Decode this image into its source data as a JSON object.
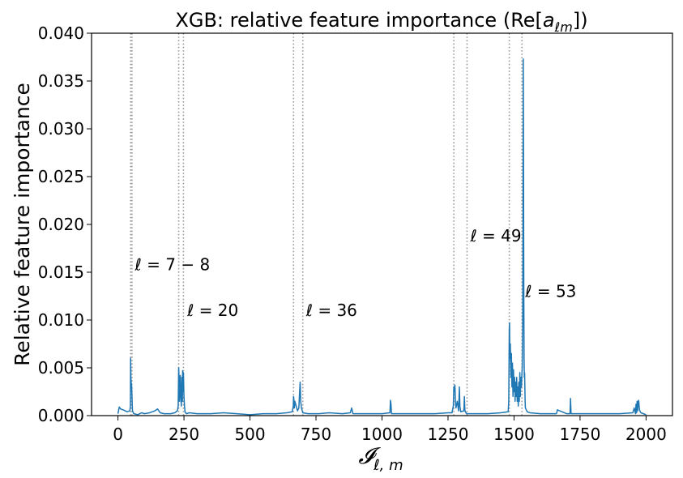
{
  "chart_data": {
    "type": "line",
    "title_parts": [
      "XGB: relative feature importance (Re[",
      "a",
      "ℓm",
      "])"
    ],
    "xlabel_parts": [
      "𝓘",
      "ℓ, m"
    ],
    "ylabel": "Relative feature importance",
    "xlim": [
      -100,
      2100
    ],
    "ylim": [
      0,
      0.04
    ],
    "xticks": [
      0,
      250,
      500,
      750,
      1000,
      1250,
      1500,
      1750,
      2000
    ],
    "yticks": [
      0.0,
      0.005,
      0.01,
      0.015,
      0.02,
      0.025,
      0.03,
      0.035,
      0.04
    ],
    "ytick_labels": [
      "0.000",
      "0.005",
      "0.010",
      "0.015",
      "0.020",
      "0.025",
      "0.030",
      "0.035",
      "0.040"
    ],
    "grid": false,
    "line_color": "#1f77b4",
    "vline_color": "#999999",
    "vlines": [
      48,
      53,
      230,
      248,
      665,
      700,
      1272,
      1322,
      1482,
      1530
    ],
    "annotations": [
      {
        "text": "ℓ = 7 − 8",
        "x": 52,
        "y": 0.0158
      },
      {
        "text": "ℓ = 20",
        "x": 250,
        "y": 0.011
      },
      {
        "text": "ℓ = 36",
        "x": 700,
        "y": 0.011
      },
      {
        "text": "ℓ = 49",
        "x": 1322,
        "y": 0.0188
      },
      {
        "text": "ℓ = 53",
        "x": 1530,
        "y": 0.013
      }
    ],
    "series": [
      {
        "x": [
          0,
          5,
          10,
          20,
          35,
          45,
          47,
          48,
          49,
          50,
          52,
          54,
          55,
          60,
          75,
          90,
          100,
          120,
          140,
          150,
          160,
          175,
          200,
          215,
          225,
          228,
          229,
          230,
          232,
          233,
          236,
          238,
          240,
          242,
          244,
          245,
          246,
          248,
          250,
          252,
          254,
          256,
          260,
          270,
          300,
          350,
          400,
          450,
          500,
          550,
          600,
          640,
          660,
          664,
          665,
          666,
          668,
          670,
          680,
          685,
          688,
          690,
          692,
          695,
          700,
          720,
          760,
          800,
          850,
          880,
          885,
          890,
          950,
          1000,
          1030,
          1032,
          1034,
          1036,
          1100,
          1150,
          1200,
          1250,
          1265,
          1270,
          1272,
          1274,
          1276,
          1278,
          1280,
          1285,
          1290,
          1293,
          1295,
          1298,
          1310,
          1312,
          1314,
          1320,
          1350,
          1400,
          1450,
          1478,
          1480,
          1482,
          1483,
          1484,
          1486,
          1488,
          1490,
          1492,
          1494,
          1496,
          1498,
          1500,
          1502,
          1504,
          1506,
          1508,
          1510,
          1512,
          1514,
          1516,
          1518,
          1520,
          1522,
          1524,
          1526,
          1528,
          1530,
          1531,
          1532,
          1533,
          1534,
          1535,
          1536,
          1537,
          1538,
          1539,
          1540,
          1541,
          1542,
          1543,
          1550,
          1560,
          1600,
          1650,
          1660,
          1662,
          1664,
          1700,
          1712,
          1714,
          1716,
          1750,
          1800,
          1850,
          1900,
          1950,
          1955,
          1960,
          1962,
          1964,
          1966,
          1968,
          1970,
          1972,
          1975,
          1980,
          1990,
          2000
        ],
        "y": [
          0.0002,
          0.0009,
          0.0007,
          0.0006,
          0.0004,
          0.0005,
          0.001,
          0.006,
          0.004,
          0.0035,
          0.003,
          0.0012,
          0.0005,
          0.0002,
          0.0001,
          0.0003,
          0.0002,
          0.0003,
          0.0005,
          0.0007,
          0.0003,
          0.0002,
          0.0002,
          0.0003,
          0.0005,
          0.001,
          0.003,
          0.005,
          0.0035,
          0.0015,
          0.0042,
          0.002,
          0.001,
          0.004,
          0.0015,
          0.0047,
          0.0025,
          0.0045,
          0.002,
          0.001,
          0.0004,
          0.0003,
          0.0002,
          0.0003,
          0.0002,
          0.0002,
          0.0003,
          0.0002,
          0.0001,
          0.0002,
          0.0002,
          0.0003,
          0.0004,
          0.001,
          0.002,
          0.0018,
          0.0008,
          0.0015,
          0.0005,
          0.0008,
          0.0025,
          0.0035,
          0.0015,
          0.0008,
          0.0003,
          0.0002,
          0.0002,
          0.0003,
          0.0002,
          0.0003,
          0.0008,
          0.0002,
          0.0002,
          0.0002,
          0.0003,
          0.0016,
          0.0012,
          0.0002,
          0.0002,
          0.0002,
          0.0002,
          0.0003,
          0.0003,
          0.001,
          0.003,
          0.0025,
          0.0032,
          0.0015,
          0.0008,
          0.0015,
          0.0005,
          0.003,
          0.001,
          0.0004,
          0.0005,
          0.002,
          0.0005,
          0.0002,
          0.0002,
          0.0002,
          0.0003,
          0.0004,
          0.0015,
          0.009,
          0.0097,
          0.006,
          0.0075,
          0.004,
          0.0065,
          0.003,
          0.0055,
          0.002,
          0.0048,
          0.0025,
          0.004,
          0.0015,
          0.0035,
          0.002,
          0.004,
          0.0015,
          0.003,
          0.001,
          0.0035,
          0.0015,
          0.0045,
          0.002,
          0.004,
          0.003,
          0.0045,
          0.005,
          0.008,
          0.01,
          0.021,
          0.0373,
          0.025,
          0.013,
          0.006,
          0.004,
          0.0045,
          0.003,
          0.0015,
          0.0008,
          0.0004,
          0.0003,
          0.0002,
          0.0002,
          0.0002,
          0.0003,
          0.0006,
          0.0002,
          0.0002,
          0.0018,
          0.0002,
          0.0002,
          0.0002,
          0.0002,
          0.0002,
          0.0003,
          0.0008,
          0.0002,
          0.0012,
          0.0003,
          0.0015,
          0.0005,
          0.0014,
          0.0016,
          0.0006,
          0.0003,
          0.0002,
          0.0001
        ]
      }
    ]
  }
}
